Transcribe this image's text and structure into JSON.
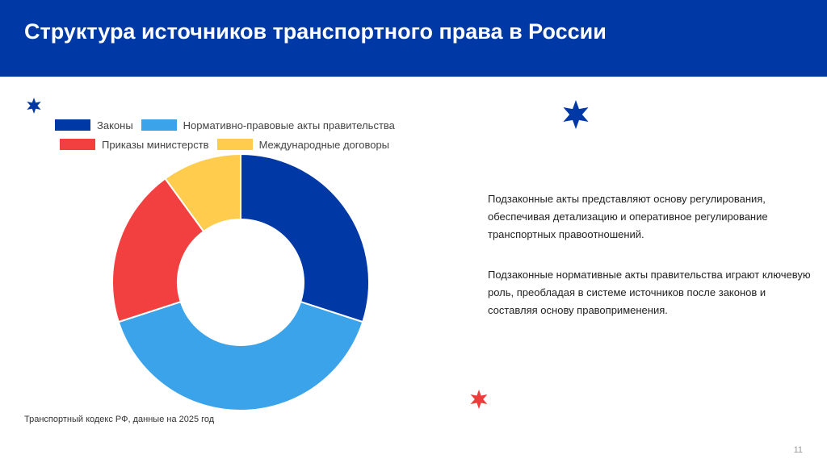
{
  "slide": {
    "title": "Структура источников транспортного права в России",
    "paragraph_1": "Подзаконные акты представляют основу регулирования, обеспечивая детализацию и оперативное регулирование транспортных правоотношений.",
    "paragraph_2": "Подзаконные нормативные акты правительства играют ключевую роль, преобладая в системе источников после законов и составляя основу правоприменения.",
    "caption": "Транспортный кодекс РФ, данные на 2025 год",
    "page_number": "11"
  },
  "colors": {
    "header": "#0039a6",
    "star_blue": "#0039a6",
    "star_red": "#ef3b3b"
  },
  "chart_data": {
    "type": "pie",
    "donut": true,
    "title": "",
    "legend_position": "top-left",
    "categories": [
      "Законы",
      "Нормативно-правовые акты правительства",
      "Приказы министерств",
      "Международные договоры"
    ],
    "values": [
      30,
      40,
      20,
      10
    ],
    "colors": [
      "#0039a6",
      "#3aa3ea",
      "#f24040",
      "#ffcc4d"
    ]
  }
}
